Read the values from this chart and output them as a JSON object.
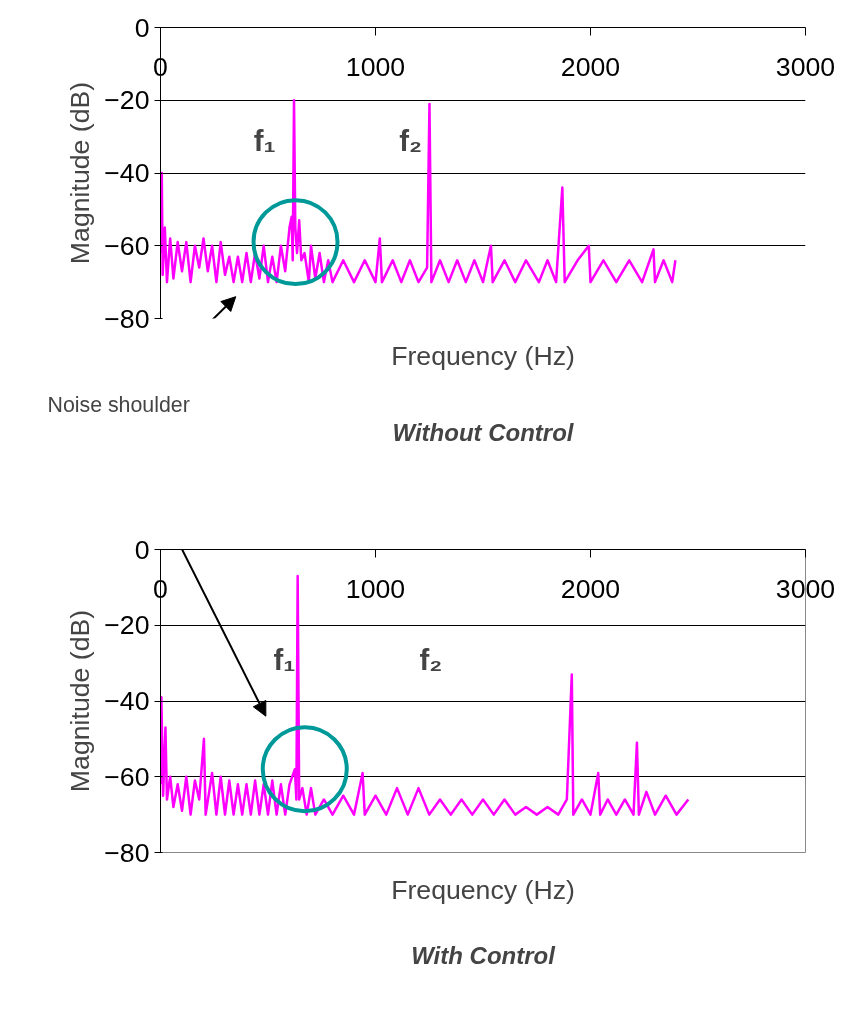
{
  "chart_data": [
    {
      "type": "line",
      "title": "Without Control",
      "xlabel": "Frequency (Hz)",
      "ylabel": "Magnitude (dB)",
      "xlim": [
        0,
        3000
      ],
      "ylim": [
        -80,
        0
      ],
      "xticks": [
        0,
        1000,
        2000,
        3000
      ],
      "yticks": [
        0,
        -20,
        -40,
        -60,
        -80
      ],
      "grid": "y",
      "annotations": [
        "f₁",
        "f₂",
        "Noise shoulder"
      ],
      "series": [
        {
          "color": "#ff00ff",
          "x": [
            0,
            6,
            10,
            20,
            30,
            45,
            60,
            80,
            100,
            120,
            140,
            160,
            180,
            200,
            220,
            240,
            260,
            280,
            300,
            320,
            340,
            360,
            380,
            400,
            420,
            440,
            460,
            480,
            500,
            520,
            540,
            560,
            580,
            600,
            610,
            615,
            621,
            627,
            635,
            645,
            655,
            670,
            690,
            700,
            720,
            740,
            760,
            780,
            800,
            850,
            900,
            950,
            1000,
            1020,
            1030,
            1080,
            1120,
            1160,
            1200,
            1240,
            1251,
            1260,
            1300,
            1340,
            1380,
            1420,
            1460,
            1500,
            1537,
            1545,
            1600,
            1650,
            1700,
            1760,
            1800,
            1840,
            1869,
            1880,
            1940,
            1992,
            2000,
            2060,
            2120,
            2180,
            2240,
            2293,
            2300,
            2340,
            2380,
            2395
          ],
          "values": [
            -62,
            -40,
            -68,
            -55,
            -70,
            -58,
            -69,
            -59,
            -67,
            -59,
            -70,
            -60,
            -66,
            -58,
            -67,
            -60,
            -70,
            -59,
            -68,
            -63,
            -70,
            -63,
            -70,
            -62,
            -70,
            -62,
            -69,
            -60,
            -70,
            -63,
            -70,
            -60,
            -67,
            -55,
            -52,
            -64,
            -20,
            -55,
            -62,
            -53,
            -64,
            -62,
            -70,
            -60,
            -69,
            -62,
            -70,
            -64,
            -70,
            -64,
            -70,
            -64,
            -70,
            -58,
            -70,
            -64,
            -70,
            -64,
            -70,
            -66,
            -21,
            -70,
            -64,
            -70,
            -64,
            -70,
            -64,
            -70,
            -60,
            -70,
            -64,
            -70,
            -64,
            -70,
            -64,
            -70,
            -44,
            -70,
            -64,
            -60,
            -70,
            -64,
            -70,
            -64,
            -70,
            -61,
            -70,
            -64,
            -70,
            -64
          ]
        }
      ]
    },
    {
      "type": "line",
      "title": "With Control",
      "xlabel": "Frequency (Hz)",
      "ylabel": "Magnitude (dB)",
      "xlim": [
        0,
        3000
      ],
      "ylim": [
        -80,
        0
      ],
      "xticks": [
        0,
        1000,
        2000,
        3000
      ],
      "yticks": [
        0,
        -20,
        -40,
        -60,
        -80
      ],
      "grid": "y",
      "annotations": [
        "f₁",
        "f₂"
      ],
      "series": [
        {
          "color": "#ff00ff",
          "x": [
            0,
            4,
            12,
            23,
            30,
            45,
            60,
            80,
            100,
            120,
            140,
            160,
            180,
            202,
            210,
            240,
            260,
            280,
            300,
            320,
            340,
            360,
            380,
            400,
            420,
            440,
            460,
            480,
            500,
            520,
            540,
            560,
            580,
            600,
            625,
            632,
            638,
            645,
            660,
            680,
            700,
            720,
            760,
            800,
            850,
            900,
            940,
            950,
            1000,
            1050,
            1100,
            1150,
            1200,
            1250,
            1300,
            1350,
            1400,
            1450,
            1500,
            1550,
            1600,
            1650,
            1700,
            1750,
            1800,
            1850,
            1890,
            1913,
            1920,
            1960,
            2000,
            2036,
            2045,
            2080,
            2120,
            2160,
            2200,
            2216,
            2225,
            2260,
            2300,
            2350,
            2400,
            2455
          ],
          "values": [
            -62,
            -39,
            -65,
            -47,
            -66,
            -60,
            -68,
            -62,
            -69,
            -60,
            -70,
            -61,
            -66,
            -50,
            -70,
            -59,
            -70,
            -60,
            -70,
            -61,
            -70,
            -62,
            -70,
            -62,
            -70,
            -61,
            -70,
            -62,
            -70,
            -61,
            -70,
            -62,
            -70,
            -62,
            -58,
            -66,
            -7,
            -66,
            -63,
            -70,
            -63,
            -70,
            -66,
            -70,
            -65,
            -70,
            -59,
            -70,
            -65,
            -70,
            -63,
            -70,
            -63,
            -70,
            -66,
            -70,
            -66,
            -70,
            -66,
            -70,
            -66,
            -70,
            -68,
            -70,
            -68,
            -70,
            -66,
            -33,
            -70,
            -66,
            -70,
            -59,
            -70,
            -66,
            -70,
            -66,
            -70,
            -51,
            -70,
            -64,
            -70,
            -65,
            -70,
            -66
          ]
        }
      ]
    }
  ]
}
